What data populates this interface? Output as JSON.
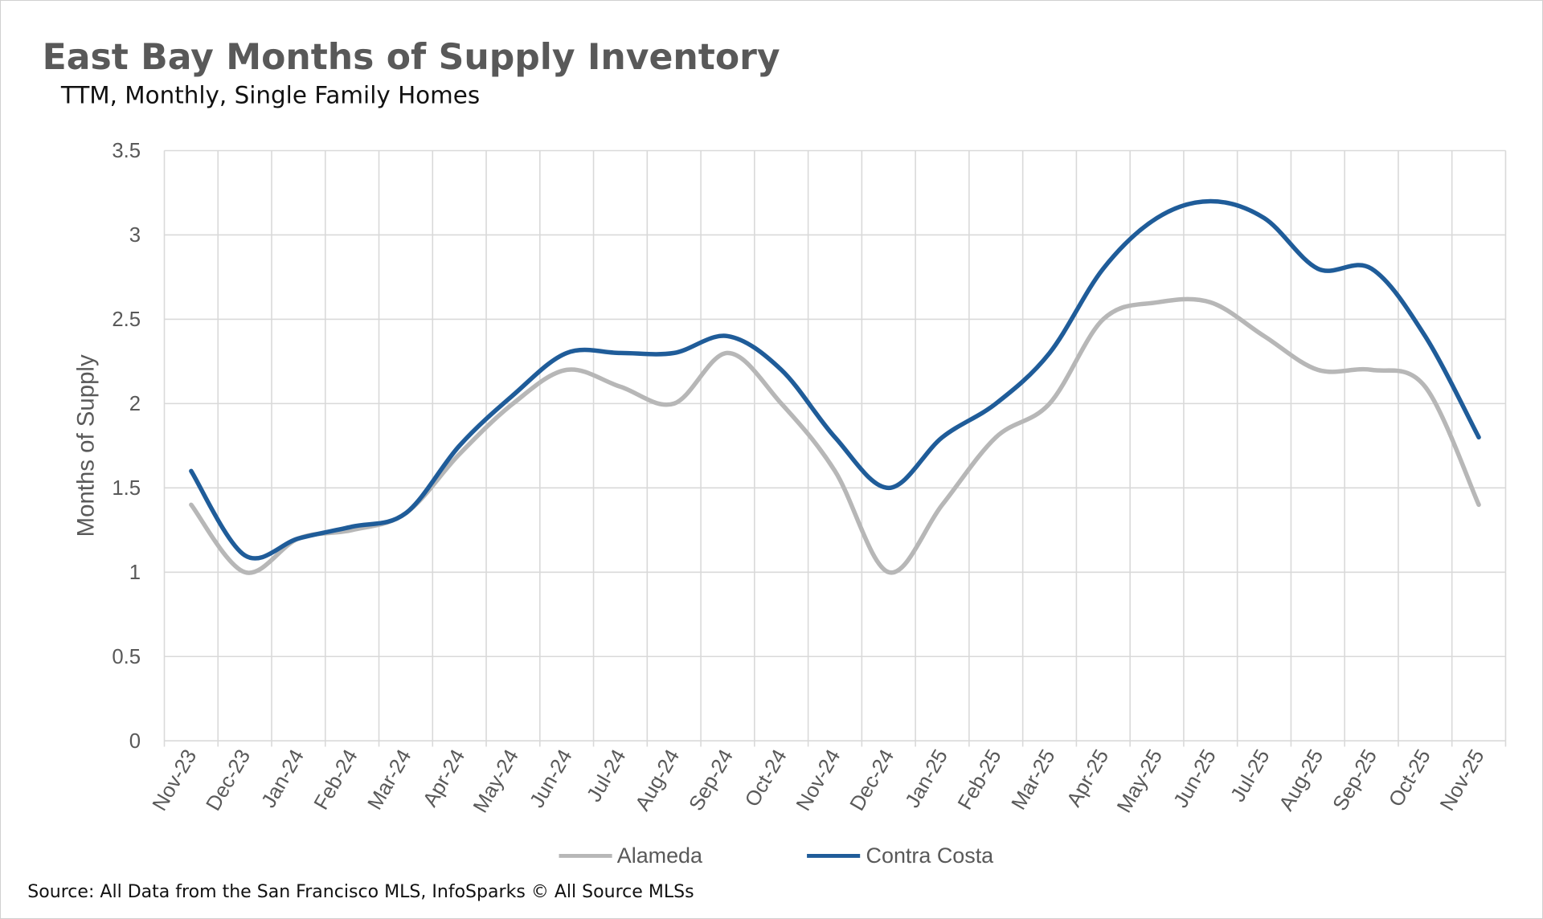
{
  "chart_data": {
    "type": "line",
    "title": "East Bay Months of Supply Inventory",
    "subtitle": "TTM, Monthly, Single Family Homes",
    "xlabel": "",
    "ylabel": "Months of Supply",
    "ylim": [
      0,
      3.5
    ],
    "yticks": [
      "0",
      "0.5",
      "1",
      "1.5",
      "2",
      "2.5",
      "3",
      "3.5"
    ],
    "grid": true,
    "smoothed": true,
    "legend_position": "bottom",
    "categories": [
      "Nov-23",
      "Dec-23",
      "Jan-24",
      "Feb-24",
      "Mar-24",
      "Apr-24",
      "May-24",
      "Jun-24",
      "Jul-24",
      "Aug-24",
      "Sep-24",
      "Oct-24",
      "Nov-24",
      "Dec-24",
      "Jan-25",
      "Feb-25",
      "Mar-25",
      "Apr-25",
      "May-25",
      "Jun-25",
      "Jul-25",
      "Aug-25",
      "Sep-25",
      "Oct-25",
      "Nov-25"
    ],
    "series": [
      {
        "name": "Alameda",
        "color": "#b7b7b7",
        "values": [
          1.4,
          1.0,
          1.2,
          1.25,
          1.35,
          1.7,
          2.0,
          2.2,
          2.1,
          2.0,
          2.3,
          2.0,
          1.6,
          1.0,
          1.4,
          1.8,
          2.0,
          2.5,
          2.6,
          2.6,
          2.4,
          2.2,
          2.2,
          2.1,
          1.4
        ]
      },
      {
        "name": "Contra Costa",
        "color": "#1f5c99",
        "values": [
          1.6,
          1.1,
          1.2,
          1.27,
          1.35,
          1.75,
          2.05,
          2.3,
          2.3,
          2.3,
          2.4,
          2.2,
          1.8,
          1.5,
          1.8,
          2.0,
          2.3,
          2.8,
          3.1,
          3.2,
          3.1,
          2.8,
          2.8,
          2.4,
          1.8
        ]
      }
    ],
    "source": "Source: All Data from the San Francisco MLS, InfoSparks © All Source MLSs"
  }
}
